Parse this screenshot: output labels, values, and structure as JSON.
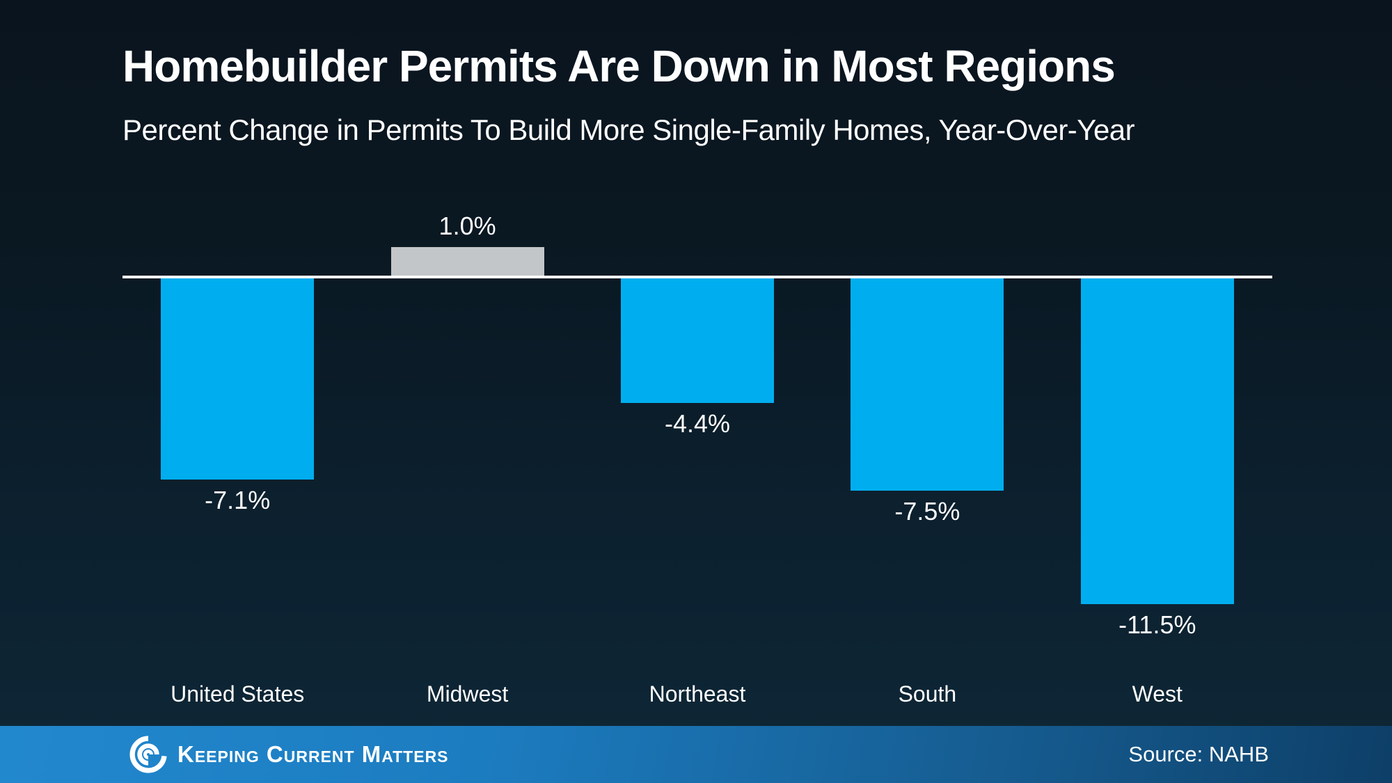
{
  "header": {
    "title": "Homebuilder Permits Are Down in Most Regions",
    "subtitle": "Percent Change in Permits To Build More Single-Family Homes, Year-Over-Year"
  },
  "chart_data": {
    "type": "bar",
    "title": "Homebuilder Permits Are Down in Most Regions",
    "subtitle": "Percent Change in Permits To Build More Single-Family Homes, Year-Over-Year",
    "categories": [
      "United States",
      "Midwest",
      "Northeast",
      "South",
      "West"
    ],
    "values": [
      -7.1,
      1.0,
      -4.4,
      -7.5,
      -11.5
    ],
    "value_labels": [
      "-7.1%",
      "1.0%",
      "-4.4%",
      "-7.5%",
      "-11.5%"
    ],
    "bar_colors": [
      "#00AEEF",
      "#C3C6C8",
      "#00AEEF",
      "#00AEEF",
      "#00AEEF"
    ],
    "xlabel": "",
    "ylabel": "",
    "ylim": [
      -12.5,
      2.0
    ],
    "grid": false,
    "legend": false,
    "zero_axis_color": "#FFFFFF",
    "background": "dark-navy-gradient"
  },
  "footer": {
    "brand": "Keeping Current Matters",
    "brand_icon": "kcm-swirl-icon",
    "source": "Source: NAHB"
  },
  "colors": {
    "background_top": "#0A141E",
    "background_bottom": "#0E2736",
    "bar_negative": "#00AEEF",
    "bar_positive": "#C3C6C8",
    "axis": "#FFFFFF",
    "text": "#FFFFFF",
    "footer_gradient_left": "#2288CE",
    "footer_gradient_right": "#0D3F68"
  }
}
